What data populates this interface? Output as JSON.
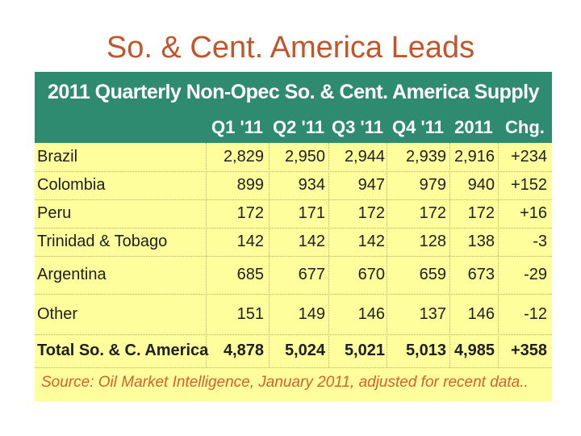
{
  "slide": {
    "title": "So. & Cent. America Leads"
  },
  "table": {
    "title": "2011 Quarterly Non-Opec So. & Cent. America Supply",
    "columns": [
      "Q1 '11",
      "Q2 '11",
      "Q3 '11",
      "Q4 '11",
      "2011",
      "Chg."
    ],
    "rows": [
      {
        "label": "Brazil",
        "values": [
          "2,829",
          "2,950",
          "2,944",
          "2,939",
          "2,916",
          "+234"
        ]
      },
      {
        "label": "Colombia",
        "values": [
          "899",
          "934",
          "947",
          "979",
          "940",
          "+152"
        ]
      },
      {
        "label": "Peru",
        "values": [
          "172",
          "171",
          "172",
          "172",
          "172",
          "+16"
        ]
      },
      {
        "label": "Trinidad & Tobago",
        "values": [
          "142",
          "142",
          "142",
          "128",
          "138",
          "-3"
        ]
      },
      {
        "label": "Argentina",
        "values": [
          "685",
          "677",
          "670",
          "659",
          "673",
          "-29"
        ]
      },
      {
        "label": "Other",
        "values": [
          "151",
          "149",
          "146",
          "137",
          "146",
          "-12"
        ]
      }
    ],
    "total": {
      "label": "Total So. & C. America",
      "values": [
        "4,878",
        "5,024",
        "5,021",
        "5,013",
        "4,985",
        "+358"
      ]
    },
    "source": "Source: Oil Market Intelligence, January 2011, adjusted for recent data.."
  },
  "colors": {
    "title": "#c0562a",
    "header_bg": "#2e8b6f",
    "table_bg": "#fefe9c",
    "source_text": "#d2612e"
  }
}
